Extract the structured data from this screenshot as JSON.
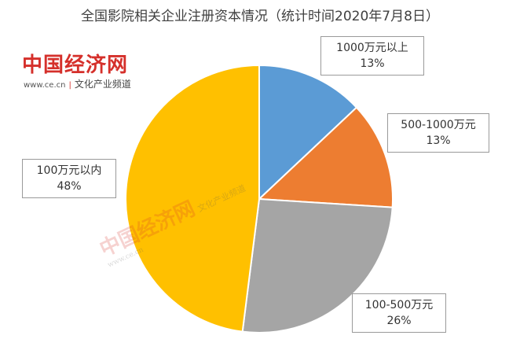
{
  "title": "全国影院相关企业注册资本情况（统计时间2020年7月8日）",
  "watermark": {
    "logo": "中国经济网",
    "url": "www.ce.cn",
    "channel": "文化产业频道"
  },
  "chart_data": {
    "type": "pie",
    "title": "全国影院相关企业注册资本情况（统计时间2020年7月8日）",
    "slices": [
      {
        "label": "1000万元以上",
        "value": 13,
        "value_label": "13%",
        "color": "#5b9bd5"
      },
      {
        "label": "500-1000万元",
        "value": 13,
        "value_label": "13%",
        "color": "#ed7d31"
      },
      {
        "label": "100-500万元",
        "value": 26,
        "value_label": "26%",
        "color": "#a5a5a5"
      },
      {
        "label": "100万元以内",
        "value": 48,
        "value_label": "48%",
        "color": "#ffc000"
      }
    ]
  }
}
